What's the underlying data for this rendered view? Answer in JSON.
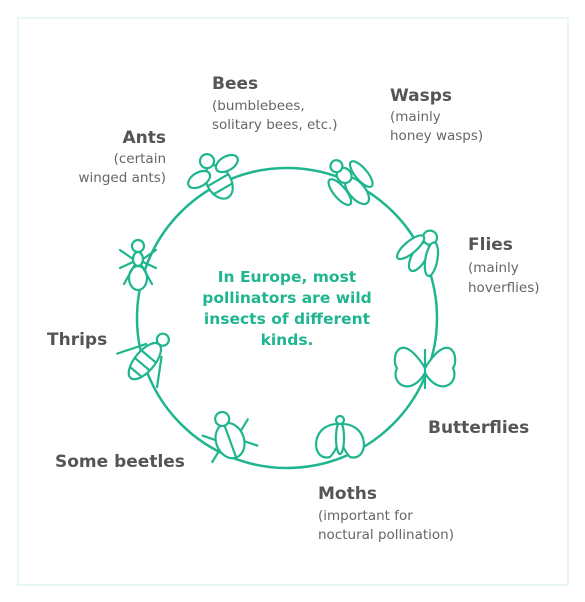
{
  "center_text": [
    "In Europe, most",
    "pollinators are wild",
    "insects of different",
    "kinds."
  ],
  "nodes": [
    {
      "name": "Bees",
      "note": [
        "(bumblebees,",
        "solitary bees, etc.)"
      ]
    },
    {
      "name": "Wasps",
      "note": [
        "(mainly",
        "honey wasps)"
      ]
    },
    {
      "name": "Ants",
      "note": [
        "(certain",
        "winged ants)"
      ]
    },
    {
      "name": "Flies",
      "note": [
        "(mainly",
        "hoverflies)"
      ]
    },
    {
      "name": "Thrips"
    },
    {
      "name": "Butterflies"
    },
    {
      "name": "Some beetles"
    },
    {
      "name": "Moths",
      "note": [
        "(important for",
        "noctural pollination)"
      ]
    }
  ]
}
